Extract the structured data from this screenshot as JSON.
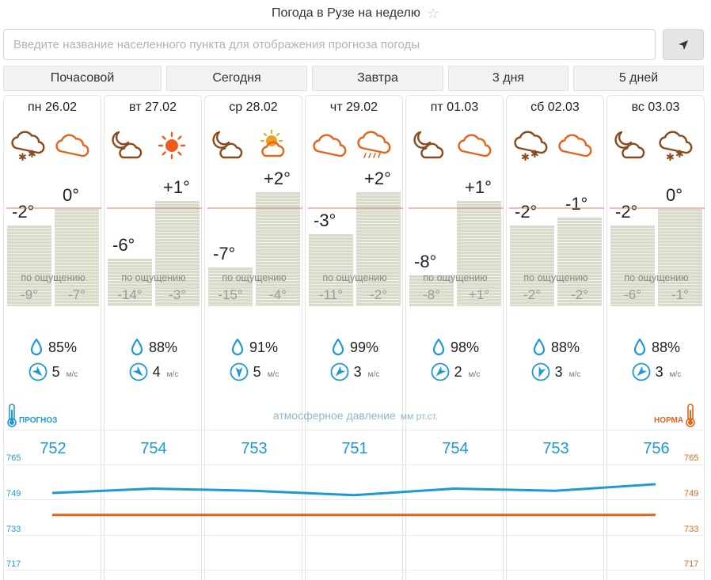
{
  "page": {
    "title": "Погода в Рузе на неделю"
  },
  "search": {
    "placeholder": "Введите название населенного пункта для отображения прогноза погоды",
    "value": ""
  },
  "tabs": [
    {
      "label": "Почасовой"
    },
    {
      "label": "Сегодня"
    },
    {
      "label": "Завтра"
    },
    {
      "label": "3 дня"
    },
    {
      "label": "5 дней"
    }
  ],
  "feels_caption": "по ощущению",
  "days": [
    {
      "label": "пн 26.02",
      "icon_night": "cloud-snow-icon",
      "icon_day": "cloud-icon",
      "night_temp": "-2°",
      "day_temp": "0°",
      "night_value": -2,
      "day_value": 0,
      "feels_night": "-9°",
      "feels_day": "-7°",
      "humidity": "85%",
      "wind_speed": "5",
      "wind_unit": "м/с",
      "wind_dir_deg": 135,
      "pressure": "752",
      "pressure_value": 752
    },
    {
      "label": "вт 27.02",
      "icon_night": "moon-cloud-icon",
      "icon_day": "sun-icon",
      "night_temp": "-6°",
      "day_temp": "+1°",
      "night_value": -6,
      "day_value": 1,
      "feels_night": "-14°",
      "feels_day": "-3°",
      "humidity": "88%",
      "wind_speed": "4",
      "wind_unit": "м/с",
      "wind_dir_deg": 135,
      "pressure": "754",
      "pressure_value": 754
    },
    {
      "label": "ср 28.02",
      "icon_night": "moon-cloud-icon",
      "icon_day": "sun-cloud-icon",
      "night_temp": "-7°",
      "day_temp": "+2°",
      "night_value": -7,
      "day_value": 2,
      "feels_night": "-15°",
      "feels_day": "-4°",
      "humidity": "91%",
      "wind_speed": "5",
      "wind_unit": "м/с",
      "wind_dir_deg": 180,
      "pressure": "753",
      "pressure_value": 753
    },
    {
      "label": "чт 29.02",
      "icon_night": "cloud-icon",
      "icon_day": "cloud-rain-icon",
      "night_temp": "-3°",
      "day_temp": "+2°",
      "night_value": -3,
      "day_value": 2,
      "feels_night": "-11°",
      "feels_day": "-2°",
      "humidity": "99%",
      "wind_speed": "3",
      "wind_unit": "м/с",
      "wind_dir_deg": 225,
      "pressure": "751",
      "pressure_value": 751
    },
    {
      "label": "пт 01.03",
      "icon_night": "moon-cloud-icon",
      "icon_day": "cloud-icon",
      "night_temp": "-8°",
      "day_temp": "+1°",
      "night_value": -8,
      "day_value": 1,
      "feels_night": "-8°",
      "feels_day": "+1°",
      "humidity": "98%",
      "wind_speed": "2",
      "wind_unit": "м/с",
      "wind_dir_deg": 225,
      "pressure": "754",
      "pressure_value": 754
    },
    {
      "label": "сб 02.03",
      "icon_night": "cloud-snow-icon",
      "icon_day": "cloud-icon",
      "night_temp": "-2°",
      "day_temp": "-1°",
      "night_value": -2,
      "day_value": -1,
      "feels_night": "-2°",
      "feels_day": "-2°",
      "humidity": "88%",
      "wind_speed": "3",
      "wind_unit": "м/с",
      "wind_dir_deg": 200,
      "pressure": "753",
      "pressure_value": 753
    },
    {
      "label": "вс 03.03",
      "icon_night": "moon-cloud-icon",
      "icon_day": "cloud-snow-icon",
      "night_temp": "-2°",
      "day_temp": "0°",
      "night_value": -2,
      "day_value": 0,
      "feels_night": "-6°",
      "feels_day": "-1°",
      "humidity": "88%",
      "wind_speed": "3",
      "wind_unit": "м/с",
      "wind_dir_deg": 225,
      "pressure": "756",
      "pressure_value": 756
    }
  ],
  "pressure_chart": {
    "caption": "атмосферное давление",
    "unit": "мм рт.ст.",
    "forecast_label": "ПРОГНОЗ",
    "norm_label": "НОРМА",
    "axis_ticks": [
      "765",
      "749",
      "733",
      "717"
    ],
    "ylim": [
      717,
      765
    ],
    "norm_value": 742,
    "forecast_color": "#1d9ad6",
    "norm_color": "#e2651b"
  }
}
